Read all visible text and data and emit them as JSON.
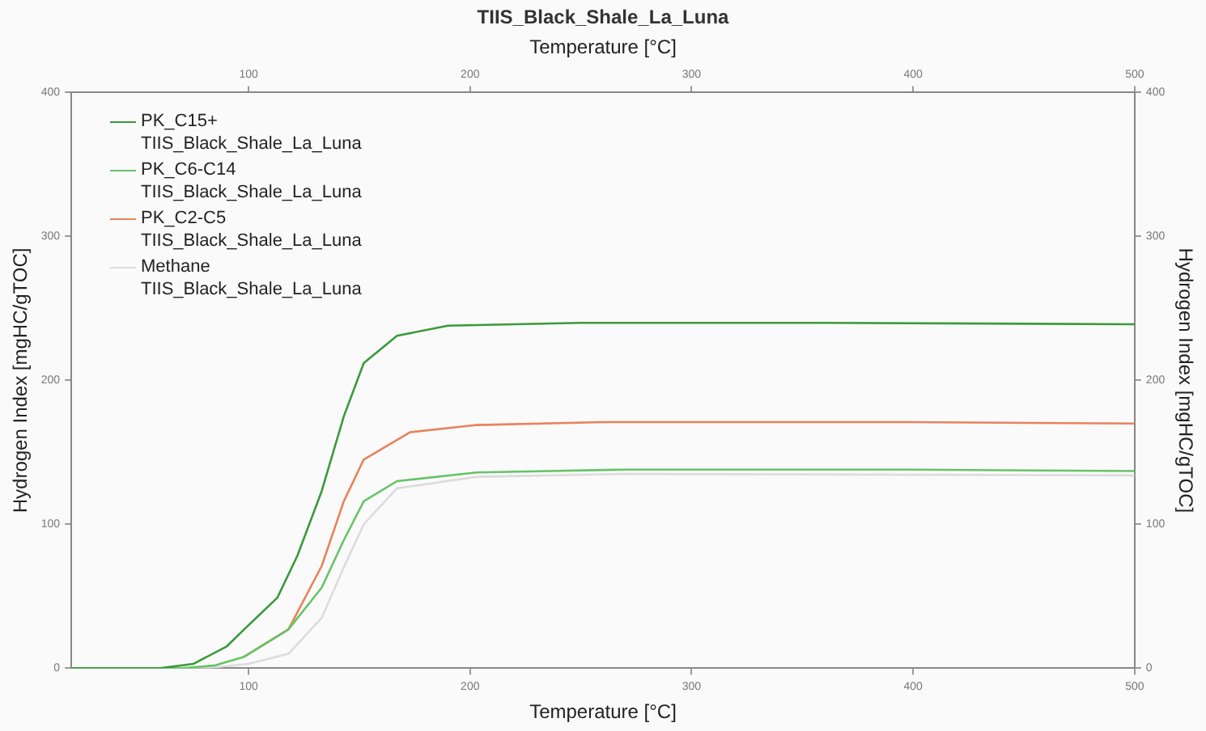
{
  "chart_data": {
    "type": "line",
    "title": "TIIS_Black_Shale_La_Luna",
    "xlabel": "Temperature [°C]",
    "x2label": "Temperature [°C]",
    "ylabel": "Hydrogen Index [mgHC/gTOC]",
    "y2label": "Hydrogen Index [mgHC/gTOC]",
    "xlim": [
      20,
      500
    ],
    "xticks": [
      100,
      200,
      300,
      400,
      500
    ],
    "x2lim": [
      20,
      500
    ],
    "x2ticks": [
      100,
      200,
      300,
      400,
      500
    ],
    "ylim": [
      0,
      400
    ],
    "yticks": [
      0,
      100,
      200,
      300,
      400
    ],
    "y2lim": [
      0,
      400
    ],
    "y2ticks": [
      0,
      100,
      200,
      300,
      400
    ],
    "grid": false,
    "legend": "top left",
    "marker": "none",
    "line_style": "solid",
    "series": [
      {
        "name": "PK_C15+\nTIIS_Black_Shale_La_Luna",
        "color": "#3a9a3a",
        "x": [
          20,
          60,
          75,
          90,
          98,
          113,
          122,
          133,
          143,
          152,
          167,
          190,
          250,
          350,
          500
        ],
        "values": [
          0,
          0,
          3,
          15,
          27,
          49,
          78,
          123,
          175,
          212,
          231,
          238,
          240,
          240,
          239
        ]
      },
      {
        "name": "PK_C6-C14\nTIIS_Black_Shale_La_Luna",
        "color": "#66c466",
        "x": [
          20,
          70,
          85,
          98,
          118,
          133,
          143,
          152,
          167,
          203,
          270,
          400,
          500
        ],
        "values": [
          0,
          0,
          2,
          8,
          27,
          56,
          89,
          116,
          130,
          136,
          138,
          138,
          137
        ]
      },
      {
        "name": "PK_C2-C5\nTIIS_Black_Shale_La_Luna",
        "color": "#e8825c",
        "x": [
          98,
          118,
          133,
          143,
          152,
          173,
          203,
          260,
          400,
          500
        ],
        "values": [
          8,
          27,
          71,
          116,
          145,
          164,
          169,
          171,
          171,
          170
        ]
      },
      {
        "name": "Methane\nTIIS_Black_Shale_La_Luna",
        "color": "#dcdcdc",
        "x": [
          20,
          80,
          100,
          118,
          133,
          143,
          152,
          167,
          203,
          270,
          500
        ],
        "values": [
          0,
          0,
          3,
          10,
          35,
          70,
          100,
          125,
          133,
          135,
          134
        ]
      }
    ]
  }
}
